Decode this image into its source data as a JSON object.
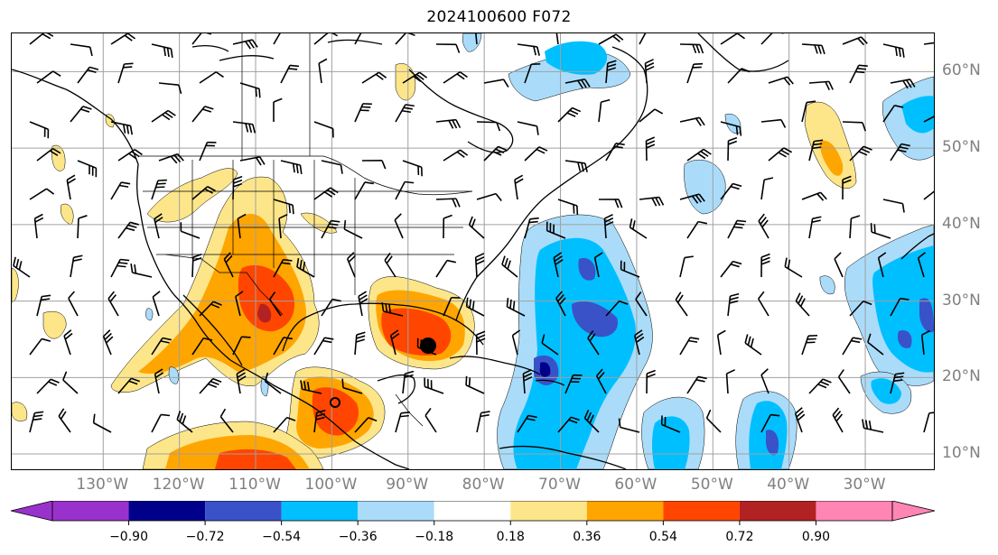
{
  "title": "2024100600 F072",
  "map": {
    "lon_range": [
      -142,
      -21
    ],
    "lat_range": [
      8,
      65
    ],
    "lon_ticks": [
      {
        "value": -130,
        "label": "130°W"
      },
      {
        "value": -120,
        "label": "120°W"
      },
      {
        "value": -110,
        "label": "110°W"
      },
      {
        "value": -100,
        "label": "100°W"
      },
      {
        "value": -90,
        "label": "90°W"
      },
      {
        "value": -80,
        "label": "80°W"
      },
      {
        "value": -70,
        "label": "70°W"
      },
      {
        "value": -60,
        "label": "60°W"
      },
      {
        "value": -50,
        "label": "50°W"
      },
      {
        "value": -40,
        "label": "40°W"
      },
      {
        "value": -30,
        "label": "30°W"
      }
    ],
    "lat_ticks": [
      {
        "value": 60,
        "label": "60°N"
      },
      {
        "value": 50,
        "label": "50°N"
      },
      {
        "value": 40,
        "label": "40°N"
      },
      {
        "value": 30,
        "label": "30°N"
      },
      {
        "value": 20,
        "label": "20°N"
      },
      {
        "value": 10,
        "label": "10°N"
      }
    ],
    "grid": true,
    "storm_markers": [
      {
        "type": "filled-circle",
        "lon": -86,
        "lat": 24
      },
      {
        "type": "open-circle",
        "lon": -99,
        "lat": 17
      }
    ]
  },
  "colorbar": {
    "levels": [
      -0.9,
      -0.72,
      -0.54,
      -0.36,
      -0.18,
      0.18,
      0.36,
      0.54,
      0.72,
      0.9
    ],
    "tick_labels": [
      "−0.90",
      "−0.72",
      "−0.54",
      "−0.36",
      "−0.18",
      "0.18",
      "0.36",
      "0.54",
      "0.72",
      "0.90"
    ],
    "colors": [
      "#9932cc",
      "#00008b",
      "#3a52c8",
      "#00bfff",
      "#aadcfa",
      "#ffffff",
      "#fde68a",
      "#ffa500",
      "#ff4500",
      "#b22222",
      "#ff85b5"
    ],
    "extend": "both"
  }
}
